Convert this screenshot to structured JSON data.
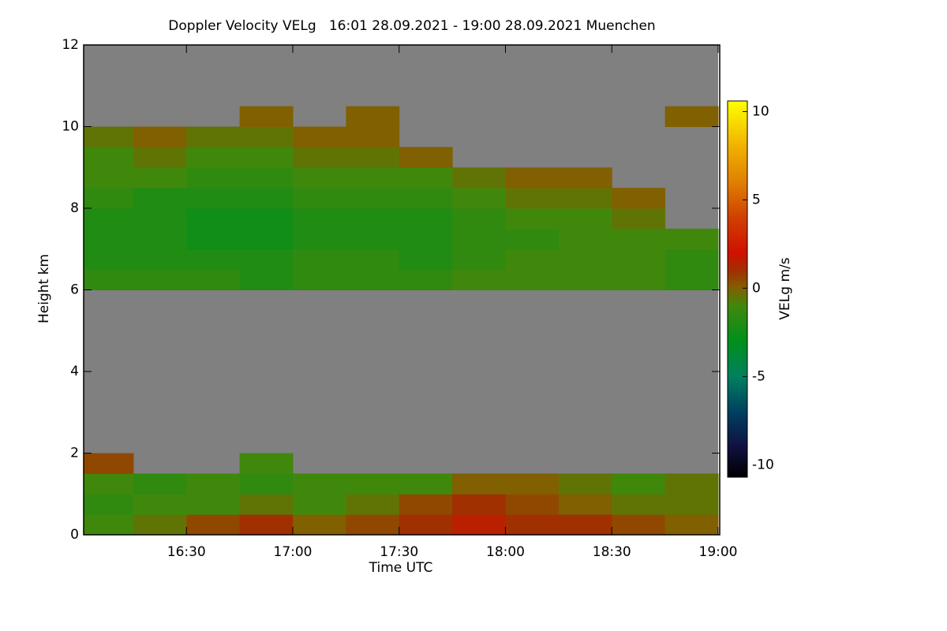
{
  "chart_data": {
    "type": "heatmap",
    "title": "Doppler Velocity VELg   16:01 28.09.2021 - 19:00 28.09.2021 Muenchen",
    "x_label": "Time UTC",
    "y_label": "Height km",
    "colorbar_label": "VELg m/s",
    "xlim": [
      "16:01",
      "19:00"
    ],
    "xticks": [
      "16:30",
      "17:00",
      "17:30",
      "18:00",
      "18:30",
      "19:00"
    ],
    "ylim": [
      0,
      12
    ],
    "yticks": [
      0,
      2,
      4,
      6,
      8,
      10,
      12
    ],
    "zlim": [
      -10.7,
      10.6
    ],
    "zticks": [
      -10,
      -5,
      0,
      5,
      10
    ],
    "null_color": "#808080",
    "colorscale": [
      [
        -10.7,
        "#000000"
      ],
      [
        -9,
        "#101040"
      ],
      [
        -7,
        "#004060"
      ],
      [
        -5,
        "#008060"
      ],
      [
        -3,
        "#00901a"
      ],
      [
        -1,
        "#40880c"
      ],
      [
        0,
        "#806000"
      ],
      [
        1,
        "#a03000"
      ],
      [
        2,
        "#d01000"
      ],
      [
        4,
        "#d04000"
      ],
      [
        6,
        "#e08000"
      ],
      [
        8,
        "#f0b000"
      ],
      [
        10.6,
        "#ffff00"
      ]
    ],
    "x_bins": [
      "16:01",
      "16:15",
      "16:30",
      "16:45",
      "17:00",
      "17:15",
      "17:30",
      "17:45",
      "18:00",
      "18:15",
      "18:30",
      "18:45",
      "19:00"
    ],
    "y_bins": [
      0,
      0.5,
      1,
      1.5,
      2,
      2.5,
      3,
      3.5,
      4,
      4.5,
      5,
      5.5,
      6,
      6.5,
      7,
      7.5,
      8,
      8.5,
      9,
      9.5,
      10,
      10.5,
      11,
      11.5,
      12
    ],
    "values": [
      [
        -1,
        -0.5,
        0.5,
        1,
        0,
        0.5,
        1,
        1.5,
        1,
        1,
        0.5,
        0
      ],
      [
        -1.5,
        -1,
        -1,
        -0.5,
        -1,
        -0.5,
        0.5,
        1,
        0.5,
        0,
        -0.5,
        -0.5
      ],
      [
        -1,
        -1.5,
        -1,
        -1.5,
        -1,
        -1,
        -1,
        0,
        0,
        -0.5,
        -1,
        -0.5
      ],
      [
        0.5,
        null,
        null,
        -1,
        null,
        null,
        null,
        null,
        null,
        null,
        null,
        null
      ],
      [
        null,
        null,
        null,
        null,
        null,
        null,
        null,
        null,
        null,
        null,
        null,
        null
      ],
      [
        null,
        null,
        null,
        null,
        null,
        null,
        null,
        null,
        null,
        null,
        null,
        null
      ],
      [
        null,
        null,
        null,
        null,
        null,
        null,
        null,
        null,
        null,
        null,
        null,
        null
      ],
      [
        null,
        null,
        null,
        null,
        null,
        null,
        null,
        null,
        null,
        null,
        null,
        null
      ],
      [
        null,
        null,
        null,
        null,
        null,
        null,
        null,
        null,
        null,
        null,
        null,
        null
      ],
      [
        null,
        null,
        null,
        null,
        null,
        null,
        null,
        null,
        null,
        null,
        null,
        null
      ],
      [
        null,
        null,
        null,
        null,
        null,
        null,
        null,
        null,
        null,
        null,
        null,
        null
      ],
      [
        null,
        null,
        null,
        null,
        null,
        null,
        null,
        null,
        null,
        null,
        null,
        null
      ],
      [
        -1.5,
        -1.5,
        -1.5,
        -2,
        -1.5,
        -1.5,
        -1.5,
        -1,
        -1,
        -1,
        -1,
        -1.5
      ],
      [
        -2,
        -2,
        -2,
        -2,
        -1.5,
        -1.5,
        -2,
        -1.5,
        -1,
        -1,
        -1,
        -1.5
      ],
      [
        -2,
        -2,
        -2.5,
        -2.5,
        -2,
        -2,
        -2,
        -1.5,
        -1.5,
        -1,
        -1,
        -1
      ],
      [
        -2,
        -2,
        -2.5,
        -2.5,
        -2,
        -2,
        -2,
        -1.5,
        -1,
        -1,
        -0.5,
        null
      ],
      [
        -1.5,
        -2,
        -2,
        -2,
        -1.5,
        -1.5,
        -1.5,
        -1,
        -0.5,
        -0.5,
        0,
        null
      ],
      [
        -1,
        -1,
        -1.5,
        -1.5,
        -1,
        -1,
        -1,
        -0.5,
        0,
        0,
        null,
        null
      ],
      [
        -1,
        -0.5,
        -1,
        -1,
        -0.5,
        -0.5,
        0,
        null,
        null,
        null,
        null,
        null
      ],
      [
        -0.5,
        0,
        -0.5,
        -0.5,
        0,
        0,
        null,
        null,
        null,
        null,
        null,
        null
      ],
      [
        null,
        null,
        null,
        0,
        null,
        0,
        null,
        null,
        null,
        null,
        null,
        0
      ],
      [
        null,
        null,
        null,
        null,
        null,
        null,
        null,
        null,
        null,
        null,
        null,
        null
      ],
      [
        null,
        null,
        null,
        null,
        null,
        null,
        null,
        null,
        null,
        null,
        null,
        null
      ],
      [
        null,
        null,
        null,
        null,
        null,
        null,
        null,
        null,
        null,
        null,
        null,
        null
      ]
    ]
  }
}
